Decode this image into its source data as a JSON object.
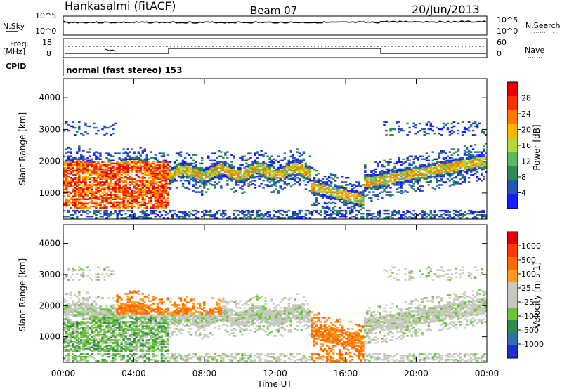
{
  "header": {
    "station": "Hankasalmi (fitACF)",
    "beam": "Beam 07",
    "date": "20/Jun/2013"
  },
  "side_labels": {
    "nsky": "N.Sky",
    "nsearch": "N.Search",
    "freq_top": "Freq.",
    "freq_unit": "[MHz]",
    "nave": "Nave",
    "cpid": "CPID",
    "cpid_text": "normal (fast stereo) 153"
  },
  "noise_axis": {
    "left_top": "10^5",
    "left_bottom": "10^0",
    "right_top": "10^5",
    "right_bottom": "10^0"
  },
  "freq_axis": {
    "left_top": "18",
    "left_bottom": "8",
    "right_top": "60",
    "right_bottom": "0"
  },
  "colors": {
    "power": [
      "#1a1aff",
      "#2655b8",
      "#2f8a5a",
      "#5cb85c",
      "#b4d83a",
      "#ffb400",
      "#ff7a00",
      "#ff3000",
      "#e80000"
    ],
    "velocity": [
      "#1f2ccf",
      "#2f6fb0",
      "#2e8a50",
      "#6ac43a",
      "#c8c8c0",
      "#c8c8c0",
      "#ff9a20",
      "#ff6a00",
      "#ff3800",
      "#e00000"
    ]
  },
  "chart_data": [
    {
      "type": "heatmap",
      "panel": "power",
      "ylabel": "Slant Range [km]",
      "ylim": [
        180,
        4600
      ],
      "yticks": [
        "1000",
        "2000",
        "3000",
        "4000"
      ],
      "colorbar_label": "Power [dB]",
      "colorbar_ticks": [
        "4",
        "8",
        "12",
        "16",
        "20",
        "24",
        "28"
      ]
    },
    {
      "type": "heatmap",
      "panel": "velocity",
      "ylabel": "Slant Range [km]",
      "ylim": [
        180,
        4600
      ],
      "yticks": [
        "1000",
        "2000",
        "3000",
        "4000"
      ],
      "colorbar_label": "Velocity [m s-1]",
      "colorbar_ticks": [
        "1000",
        "500",
        "100",
        "25",
        "-25",
        "-100",
        "-500",
        "-1000"
      ]
    }
  ],
  "xaxis": {
    "label": "Time UT",
    "ticks": [
      "00:00",
      "04:00",
      "08:00",
      "12:00",
      "16:00",
      "20:00",
      "00:00"
    ]
  }
}
